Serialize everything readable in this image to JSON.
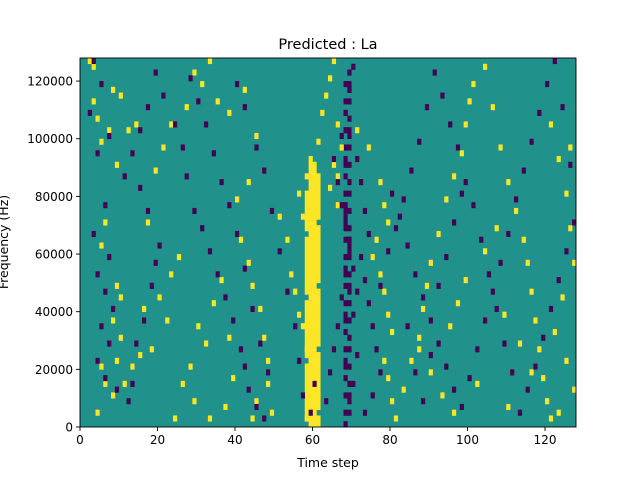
{
  "chart_data": {
    "type": "heatmap",
    "title": "Predicted : La",
    "xlabel": "Time step",
    "ylabel": "Frequency (Hz)",
    "xlim": [
      0,
      128
    ],
    "ylim": [
      0,
      128000
    ],
    "xticks": [
      0,
      20,
      40,
      60,
      80,
      100,
      120
    ],
    "xtick_labels": [
      "0",
      "20",
      "40",
      "60",
      "80",
      "100",
      "120"
    ],
    "yticks": [
      0,
      20000,
      40000,
      60000,
      80000,
      100000,
      120000
    ],
    "ytick_labels": [
      "0",
      "20000",
      "40000",
      "60000",
      "80000",
      "100000",
      "120000"
    ],
    "n_time_steps": 128,
    "n_freq_bins": 64,
    "bin_height_hz": 2000,
    "colormap": "viridis",
    "cell_values": {
      "low": -1,
      "mid": 0,
      "high": 1
    },
    "colors": {
      "low": "#440154",
      "mid": "#21918c",
      "high": "#fde725"
    },
    "background_value": 0,
    "grid": false,
    "legend": "none",
    "events": [
      [
        2,
        126000,
        1
      ],
      [
        3,
        124000,
        1
      ],
      [
        8,
        116000,
        1
      ],
      [
        10,
        114000,
        1
      ],
      [
        3,
        112000,
        1
      ],
      [
        4,
        106000,
        1
      ],
      [
        7,
        102000,
        1
      ],
      [
        5,
        98000,
        1
      ],
      [
        12,
        102000,
        1
      ],
      [
        14,
        104000,
        1
      ],
      [
        9,
        90000,
        1
      ],
      [
        6,
        70000,
        1
      ],
      [
        5,
        62000,
        1
      ],
      [
        9,
        48000,
        1
      ],
      [
        10,
        44000,
        1
      ],
      [
        8,
        36000,
        1
      ],
      [
        10,
        30000,
        1
      ],
      [
        9,
        22000,
        1
      ],
      [
        5,
        20000,
        1
      ],
      [
        6,
        14000,
        1
      ],
      [
        8,
        10000,
        1
      ],
      [
        4,
        4000,
        1
      ],
      [
        11,
        14000,
        1
      ],
      [
        13,
        20000,
        1
      ],
      [
        15,
        24000,
        1
      ],
      [
        18,
        26000,
        1
      ],
      [
        16,
        40000,
        1
      ],
      [
        20,
        44000,
        1
      ],
      [
        22,
        36000,
        1
      ],
      [
        23,
        52000,
        1
      ],
      [
        25,
        58000,
        1
      ],
      [
        17,
        70000,
        1
      ],
      [
        19,
        88000,
        1
      ],
      [
        21,
        96000,
        1
      ],
      [
        23,
        104000,
        1
      ],
      [
        27,
        110000,
        1
      ],
      [
        29,
        122000,
        1
      ],
      [
        31,
        118000,
        1
      ],
      [
        33,
        126000,
        1
      ],
      [
        35,
        112000,
        1
      ],
      [
        38,
        108000,
        1
      ],
      [
        42,
        116000,
        1
      ],
      [
        45,
        100000,
        1
      ],
      [
        43,
        84000,
        1
      ],
      [
        40,
        78000,
        1
      ],
      [
        41,
        64000,
        1
      ],
      [
        43,
        56000,
        1
      ],
      [
        44,
        48000,
        1
      ],
      [
        46,
        40000,
        1
      ],
      [
        47,
        30000,
        1
      ],
      [
        48,
        22000,
        1
      ],
      [
        48,
        14000,
        1
      ],
      [
        45,
        8000,
        1
      ],
      [
        49,
        4000,
        1
      ],
      [
        44,
        2000,
        1
      ],
      [
        51,
        72000,
        1
      ],
      [
        53,
        64000,
        1
      ],
      [
        54,
        52000,
        1
      ],
      [
        55,
        46000,
        1
      ],
      [
        56,
        38000,
        1
      ],
      [
        57,
        34000,
        1
      ],
      [
        58,
        26000,
        1
      ],
      [
        59,
        22000,
        1
      ],
      [
        60,
        16000,
        1
      ],
      [
        61,
        10000,
        1
      ],
      [
        59,
        6000,
        1
      ],
      [
        58,
        2000,
        1
      ],
      [
        57,
        72000,
        1
      ],
      [
        56,
        80000,
        1
      ],
      [
        58,
        86000,
        1
      ],
      [
        59,
        92000,
        1
      ],
      [
        61,
        98000,
        1
      ],
      [
        62,
        108000,
        1
      ],
      [
        63,
        114000,
        1
      ],
      [
        64,
        120000,
        1
      ],
      [
        65,
        126000,
        1
      ],
      [
        66,
        104000,
        1
      ],
      [
        67,
        96000,
        1
      ],
      [
        65,
        90000,
        1
      ],
      [
        66,
        86000,
        1
      ],
      [
        64,
        82000,
        1
      ],
      [
        66,
        76000,
        1
      ],
      [
        71,
        102000,
        1
      ],
      [
        74,
        96000,
        1
      ],
      [
        77,
        84000,
        1
      ],
      [
        78,
        76000,
        1
      ],
      [
        79,
        70000,
        1
      ],
      [
        76,
        64000,
        1
      ],
      [
        75,
        58000,
        1
      ],
      [
        77,
        52000,
        1
      ],
      [
        78,
        46000,
        1
      ],
      [
        79,
        38000,
        1
      ],
      [
        80,
        32000,
        1
      ],
      [
        78,
        22000,
        1
      ],
      [
        79,
        16000,
        1
      ],
      [
        80,
        8000,
        1
      ],
      [
        81,
        2000,
        1
      ],
      [
        83,
        12000,
        1
      ],
      [
        85,
        22000,
        1
      ],
      [
        87,
        30000,
        1
      ],
      [
        88,
        40000,
        1
      ],
      [
        89,
        48000,
        1
      ],
      [
        90,
        56000,
        1
      ],
      [
        92,
        66000,
        1
      ],
      [
        94,
        78000,
        1
      ],
      [
        96,
        86000,
        1
      ],
      [
        98,
        94000,
        1
      ],
      [
        99,
        104000,
        1
      ],
      [
        100,
        112000,
        1
      ],
      [
        101,
        118000,
        1
      ],
      [
        104,
        124000,
        1
      ],
      [
        106,
        110000,
        1
      ],
      [
        108,
        96000,
        1
      ],
      [
        110,
        84000,
        1
      ],
      [
        112,
        74000,
        1
      ],
      [
        114,
        64000,
        1
      ],
      [
        115,
        56000,
        1
      ],
      [
        116,
        46000,
        1
      ],
      [
        117,
        36000,
        1
      ],
      [
        118,
        26000,
        1
      ],
      [
        119,
        16000,
        1
      ],
      [
        120,
        8000,
        1
      ],
      [
        121,
        2000,
        1
      ],
      [
        121,
        104000,
        1
      ],
      [
        123,
        92000,
        1
      ],
      [
        125,
        80000,
        1
      ],
      [
        126,
        68000,
        1
      ],
      [
        127,
        56000,
        1
      ],
      [
        124,
        44000,
        1
      ],
      [
        122,
        32000,
        1
      ],
      [
        125,
        22000,
        1
      ],
      [
        127,
        12000,
        1
      ],
      [
        123,
        4000,
        1
      ],
      [
        126,
        96000,
        1
      ],
      [
        110,
        6000,
        1
      ],
      [
        102,
        14000,
        1
      ],
      [
        96,
        4000,
        1
      ],
      [
        93,
        10000,
        1
      ],
      [
        90,
        18000,
        1
      ],
      [
        87,
        26000,
        1
      ],
      [
        95,
        34000,
        1
      ],
      [
        97,
        42000,
        1
      ],
      [
        99,
        50000,
        1
      ],
      [
        104,
        60000,
        1
      ],
      [
        107,
        68000,
        1
      ],
      [
        109,
        38000,
        1
      ],
      [
        113,
        28000,
        1
      ],
      [
        116,
        18000,
        1
      ],
      [
        26,
        14000,
        1
      ],
      [
        28,
        20000,
        1
      ],
      [
        30,
        34000,
        1
      ],
      [
        32,
        28000,
        1
      ],
      [
        34,
        42000,
        1
      ],
      [
        36,
        50000,
        1
      ],
      [
        38,
        30000,
        1
      ],
      [
        39,
        16000,
        1
      ],
      [
        37,
        6000,
        1
      ],
      [
        33,
        2000,
        1
      ],
      [
        29,
        8000,
        1
      ],
      [
        24,
        2000,
        1
      ],
      [
        3,
        126000,
        -1
      ],
      [
        5,
        118000,
        -1
      ],
      [
        2,
        108000,
        -1
      ],
      [
        7,
        100000,
        -1
      ],
      [
        4,
        94000,
        -1
      ],
      [
        11,
        86000,
        -1
      ],
      [
        6,
        76000,
        -1
      ],
      [
        3,
        66000,
        -1
      ],
      [
        7,
        58000,
        -1
      ],
      [
        4,
        52000,
        -1
      ],
      [
        6,
        46000,
        -1
      ],
      [
        8,
        40000,
        -1
      ],
      [
        5,
        34000,
        -1
      ],
      [
        7,
        28000,
        -1
      ],
      [
        4,
        22000,
        -1
      ],
      [
        6,
        16000,
        -1
      ],
      [
        9,
        12000,
        -1
      ],
      [
        12,
        8000,
        -1
      ],
      [
        13,
        14000,
        -1
      ],
      [
        14,
        28000,
        -1
      ],
      [
        16,
        36000,
        -1
      ],
      [
        18,
        48000,
        -1
      ],
      [
        19,
        56000,
        -1
      ],
      [
        20,
        62000,
        -1
      ],
      [
        17,
        74000,
        -1
      ],
      [
        15,
        82000,
        -1
      ],
      [
        13,
        94000,
        -1
      ],
      [
        15,
        102000,
        -1
      ],
      [
        17,
        110000,
        -1
      ],
      [
        19,
        122000,
        -1
      ],
      [
        21,
        114000,
        -1
      ],
      [
        24,
        104000,
        -1
      ],
      [
        26,
        96000,
        -1
      ],
      [
        27,
        86000,
        -1
      ],
      [
        29,
        74000,
        -1
      ],
      [
        31,
        68000,
        -1
      ],
      [
        33,
        60000,
        -1
      ],
      [
        35,
        52000,
        -1
      ],
      [
        37,
        44000,
        -1
      ],
      [
        39,
        36000,
        -1
      ],
      [
        41,
        26000,
        -1
      ],
      [
        42,
        20000,
        -1
      ],
      [
        43,
        12000,
        -1
      ],
      [
        45,
        6000,
        -1
      ],
      [
        47,
        2000,
        -1
      ],
      [
        48,
        18000,
        -1
      ],
      [
        46,
        28000,
        -1
      ],
      [
        44,
        40000,
        -1
      ],
      [
        42,
        54000,
        -1
      ],
      [
        40,
        66000,
        -1
      ],
      [
        38,
        76000,
        -1
      ],
      [
        36,
        84000,
        -1
      ],
      [
        34,
        94000,
        -1
      ],
      [
        32,
        104000,
        -1
      ],
      [
        30,
        112000,
        -1
      ],
      [
        28,
        120000,
        -1
      ],
      [
        40,
        118000,
        -1
      ],
      [
        42,
        110000,
        -1
      ],
      [
        45,
        96000,
        -1
      ],
      [
        47,
        88000,
        -1
      ],
      [
        49,
        74000,
        -1
      ],
      [
        51,
        60000,
        -1
      ],
      [
        53,
        46000,
        -1
      ],
      [
        55,
        34000,
        -1
      ],
      [
        56,
        22000,
        -1
      ],
      [
        57,
        10000,
        -1
      ],
      [
        59,
        4000,
        -1
      ],
      [
        60,
        14000,
        -1
      ],
      [
        63,
        8000,
        -1
      ],
      [
        64,
        18000,
        -1
      ],
      [
        65,
        26000,
        -1
      ],
      [
        66,
        34000,
        -1
      ],
      [
        67,
        44000,
        -1
      ],
      [
        68,
        52000,
        -1
      ],
      [
        69,
        60000,
        -1
      ],
      [
        68,
        68000,
        -1
      ],
      [
        67,
        76000,
        -1
      ],
      [
        66,
        84000,
        -1
      ],
      [
        65,
        92000,
        -1
      ],
      [
        67,
        100000,
        -1
      ],
      [
        68,
        108000,
        -1
      ],
      [
        69,
        116000,
        -1
      ],
      [
        70,
        124000,
        -1
      ],
      [
        71,
        92000,
        -1
      ],
      [
        72,
        84000,
        -1
      ],
      [
        73,
        74000,
        -1
      ],
      [
        74,
        66000,
        -1
      ],
      [
        72,
        58000,
        -1
      ],
      [
        73,
        50000,
        -1
      ],
      [
        74,
        42000,
        -1
      ],
      [
        75,
        34000,
        -1
      ],
      [
        76,
        26000,
        -1
      ],
      [
        77,
        18000,
        -1
      ],
      [
        75,
        10000,
        -1
      ],
      [
        73,
        4000,
        -1
      ],
      [
        70,
        14000,
        -1
      ],
      [
        71,
        24000,
        -1
      ],
      [
        70,
        38000,
        -1
      ],
      [
        71,
        46000,
        -1
      ],
      [
        70,
        54000,
        -1
      ],
      [
        69,
        64000,
        -1
      ],
      [
        68,
        72000,
        -1
      ],
      [
        80,
        80000,
        -1
      ],
      [
        82,
        72000,
        -1
      ],
      [
        84,
        62000,
        -1
      ],
      [
        86,
        52000,
        -1
      ],
      [
        88,
        44000,
        -1
      ],
      [
        90,
        36000,
        -1
      ],
      [
        92,
        28000,
        -1
      ],
      [
        94,
        20000,
        -1
      ],
      [
        96,
        12000,
        -1
      ],
      [
        98,
        6000,
        -1
      ],
      [
        100,
        16000,
        -1
      ],
      [
        102,
        26000,
        -1
      ],
      [
        104,
        36000,
        -1
      ],
      [
        106,
        46000,
        -1
      ],
      [
        108,
        56000,
        -1
      ],
      [
        110,
        66000,
        -1
      ],
      [
        112,
        78000,
        -1
      ],
      [
        114,
        88000,
        -1
      ],
      [
        116,
        98000,
        -1
      ],
      [
        118,
        108000,
        -1
      ],
      [
        120,
        118000,
        -1
      ],
      [
        122,
        126000,
        -1
      ],
      [
        124,
        110000,
        -1
      ],
      [
        126,
        90000,
        -1
      ],
      [
        127,
        70000,
        -1
      ],
      [
        125,
        60000,
        -1
      ],
      [
        123,
        50000,
        -1
      ],
      [
        121,
        40000,
        -1
      ],
      [
        119,
        30000,
        -1
      ],
      [
        117,
        20000,
        -1
      ],
      [
        115,
        12000,
        -1
      ],
      [
        113,
        4000,
        -1
      ],
      [
        111,
        18000,
        -1
      ],
      [
        109,
        28000,
        -1
      ],
      [
        107,
        40000,
        -1
      ],
      [
        105,
        52000,
        -1
      ],
      [
        103,
        64000,
        -1
      ],
      [
        101,
        76000,
        -1
      ],
      [
        99,
        84000,
        -1
      ],
      [
        97,
        96000,
        -1
      ],
      [
        95,
        104000,
        -1
      ],
      [
        93,
        114000,
        -1
      ],
      [
        91,
        122000,
        -1
      ],
      [
        89,
        110000,
        -1
      ],
      [
        87,
        98000,
        -1
      ],
      [
        85,
        88000,
        -1
      ],
      [
        83,
        78000,
        -1
      ],
      [
        81,
        68000,
        -1
      ],
      [
        79,
        60000,
        -1
      ],
      [
        77,
        48000,
        -1
      ],
      [
        84,
        34000,
        -1
      ],
      [
        86,
        18000,
        -1
      ],
      [
        88,
        8000,
        -1
      ],
      [
        90,
        24000,
        -1
      ],
      [
        92,
        48000,
        -1
      ],
      [
        94,
        58000,
        -1
      ],
      [
        96,
        70000,
        -1
      ],
      [
        98,
        80000,
        -1
      ]
    ],
    "dense_yellow_band": {
      "time_steps": [
        58,
        59,
        60,
        61
      ],
      "freq_from": 0,
      "freq_to": 92000,
      "value": 1
    },
    "dense_purple_band": {
      "time_steps": [
        68,
        69
      ],
      "freq_from": 0,
      "freq_to": 124000,
      "value": -1,
      "density": 0.45
    }
  }
}
